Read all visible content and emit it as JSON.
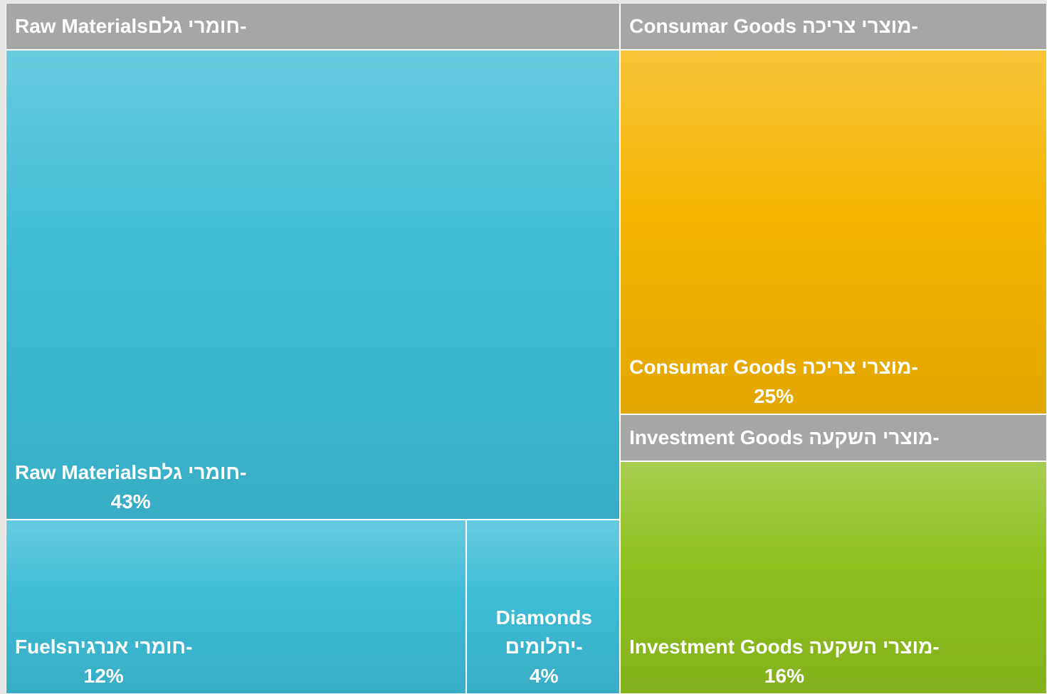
{
  "chart_data": {
    "type": "treemap",
    "groups": [
      {
        "name": "Raw Materialsחומרי גלם-",
        "color": "#3dbcd6",
        "leaves": [
          {
            "name": "Raw Materialsחומרי גלם-",
            "value": 43,
            "value_label": "43%"
          },
          {
            "name": "Fuelsחומרי אנרגיה-",
            "value": 12,
            "value_label": "12%"
          },
          {
            "name": "Diamonds יהלומים-",
            "value": 4,
            "value_label": "4%"
          }
        ]
      },
      {
        "name": "Consumar Goods מוצרי צריכה-",
        "color": "#f5b400",
        "leaves": [
          {
            "name": "Consumar Goods מוצרי צריכה-",
            "value": 25,
            "value_label": "25%"
          }
        ]
      },
      {
        "name": "Investment Goods מוצרי השקעה-",
        "color": "#8fc01e",
        "leaves": [
          {
            "name": "Investment Goods מוצרי השקעה-",
            "value": 16,
            "value_label": "16%"
          }
        ]
      }
    ]
  }
}
